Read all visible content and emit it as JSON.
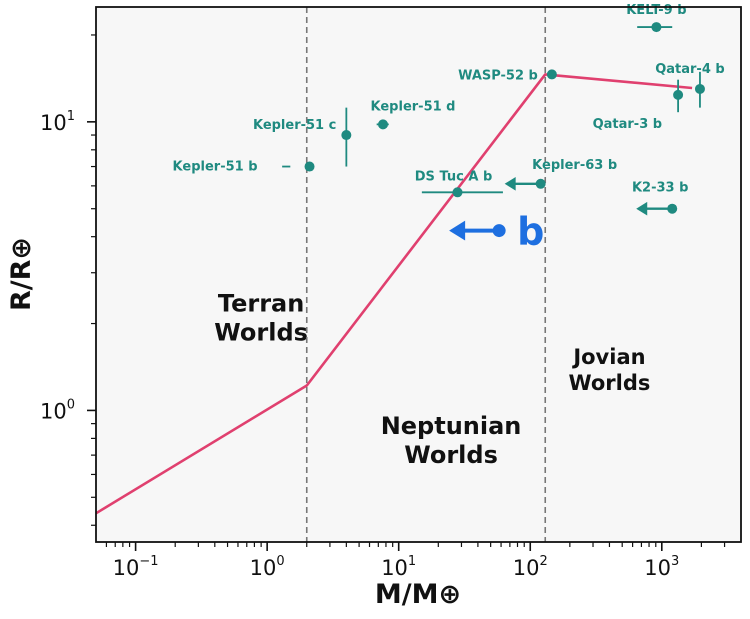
{
  "chart_data": {
    "type": "scatter",
    "xlabel": "M/M⊕",
    "ylabel": "R/R⊕",
    "xscale": "log",
    "yscale": "log",
    "xlim": [
      0.05,
      4000
    ],
    "ylim": [
      0.35,
      25
    ],
    "grid": false,
    "xticks": [
      {
        "value": 0.1,
        "base": "10",
        "exp": "−1"
      },
      {
        "value": 1,
        "base": "10",
        "exp": "0"
      },
      {
        "value": 10,
        "base": "10",
        "exp": "1"
      },
      {
        "value": 100,
        "base": "10",
        "exp": "2"
      },
      {
        "value": 1000,
        "base": "10",
        "exp": "3"
      }
    ],
    "yticks": [
      {
        "value": 1,
        "base": "10",
        "exp": "0"
      },
      {
        "value": 10,
        "base": "10",
        "exp": "1"
      }
    ],
    "boundaries": [
      2.0,
      130
    ],
    "regions": [
      {
        "lines": [
          "Terran",
          "Worlds"
        ],
        "at": [
          0.9,
          2.2
        ]
      },
      {
        "lines": [
          "Neptunian",
          "Worlds"
        ],
        "at": [
          25,
          0.83
        ]
      },
      {
        "lines": [
          "Jovian",
          "Worlds"
        ],
        "at": [
          400,
          1.45
        ]
      }
    ],
    "mass_radius_relation": {
      "x": [
        0.05,
        2.0,
        130,
        1700
      ],
      "y": [
        0.44,
        1.22,
        14.6,
        13.1
      ]
    },
    "planets": [
      {
        "name": "Kepler-51 b",
        "x": 2.1,
        "y": 7.0,
        "xerr": [
          1.3,
          1.5
        ]
      },
      {
        "name": "Kepler-51 c",
        "x": 4.0,
        "y": 9.0,
        "yerr": [
          7.0,
          11.2
        ]
      },
      {
        "name": "Kepler-51 d",
        "x": 7.6,
        "y": 9.8,
        "xerr": [
          6.8,
          8.4
        ]
      },
      {
        "name": "DS Tuc A b",
        "x": 28,
        "y": 5.7,
        "xerr": [
          15,
          62
        ]
      },
      {
        "name": "Kepler-63 b",
        "x": 120,
        "y": 6.1,
        "upper_limit": true
      },
      {
        "name": "WASP-52 b",
        "x": 146,
        "y": 14.6
      },
      {
        "name": "KELT-9 b",
        "x": 910,
        "y": 21.3,
        "xerr": [
          650,
          1200
        ]
      },
      {
        "name": "Qatar-3 b",
        "x": 1330,
        "y": 12.4,
        "yerr": [
          10.8,
          14.0
        ]
      },
      {
        "name": "Qatar-4 b",
        "x": 1950,
        "y": 13.0,
        "yerr": [
          11.2,
          14.9
        ]
      },
      {
        "name": "K2-33 b",
        "x": 1200,
        "y": 5.0,
        "upper_limit": true
      }
    ],
    "highlight": {
      "label": "b",
      "x": 58,
      "y": 4.2,
      "upper_limit": true
    }
  },
  "colors": {
    "points": "#1f8a80",
    "highlight": "#1e6fe0",
    "relation": "#e0406f",
    "boundary": "#777777",
    "background": "#f7f7f7"
  }
}
